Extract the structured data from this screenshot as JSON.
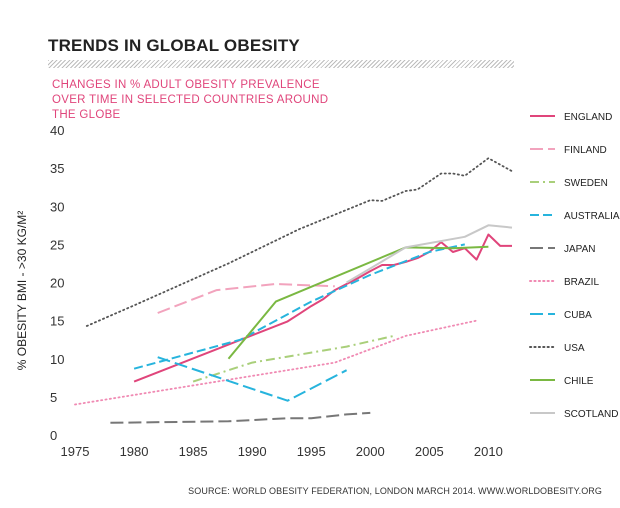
{
  "header": {
    "title": "TRENDS IN GLOBAL OBESITY",
    "subtitle": "CHANGES IN % ADULT OBESITY PREVALENCE OVER TIME IN SELECTED COUNTRIES AROUND THE GLOBE"
  },
  "source": "SOURCE: WORLD OBESITY FEDERATION, LONDON MARCH 2014.  WWW.WORLDOBESITY.ORG",
  "chart_data": {
    "type": "line",
    "title": "TRENDS IN GLOBAL OBESITY",
    "subtitle": "CHANGES IN % ADULT OBESITY PREVALENCE OVER TIME IN SELECTED COUNTRIES AROUND THE GLOBE",
    "xlabel": "",
    "ylabel": "% OBESITY BMI  - >30 KG/M²",
    "xlim": [
      1975,
      2012
    ],
    "ylim": [
      0,
      40
    ],
    "xticks": [
      1975,
      1980,
      1985,
      1990,
      1995,
      2000,
      2005,
      2010
    ],
    "yticks": [
      0,
      5,
      10,
      15,
      20,
      25,
      30,
      35,
      40
    ],
    "grid": false,
    "legend_position": "right",
    "series": [
      {
        "name": "ENGLAND",
        "color": "#e0457b",
        "dash": "solid",
        "points": [
          [
            1980,
            7.0
          ],
          [
            1993,
            14.9
          ],
          [
            1994,
            15.9
          ],
          [
            1995,
            16.9
          ],
          [
            1996,
            17.8
          ],
          [
            1997,
            19.0
          ],
          [
            1998,
            19.8
          ],
          [
            1999,
            20.6
          ],
          [
            2000,
            21.5
          ],
          [
            2001,
            22.3
          ],
          [
            2002,
            22.3
          ],
          [
            2003,
            22.7
          ],
          [
            2004,
            23.2
          ],
          [
            2005,
            24.0
          ],
          [
            2006,
            25.3
          ],
          [
            2007,
            24.0
          ],
          [
            2008,
            24.5
          ],
          [
            2009,
            23.0
          ],
          [
            2010,
            26.3
          ],
          [
            2011,
            24.8
          ],
          [
            2012,
            24.8
          ]
        ]
      },
      {
        "name": "FINLAND",
        "color": "#f2a3bd",
        "dash": "longdash",
        "points": [
          [
            1982,
            16.0
          ],
          [
            1987,
            19.0
          ],
          [
            1992,
            19.8
          ],
          [
            1997,
            19.5
          ]
        ]
      },
      {
        "name": "SWEDEN",
        "color": "#a9cf7a",
        "dash": "dashdot",
        "points": [
          [
            1985,
            7.0
          ],
          [
            1988,
            8.5
          ],
          [
            1990,
            9.5
          ],
          [
            1995,
            10.8
          ],
          [
            1998,
            11.6
          ],
          [
            2002,
            13.0
          ]
        ]
      },
      {
        "name": "AUSTRALIA",
        "color": "#27b4dd",
        "dash": "dashed",
        "points": [
          [
            1980,
            8.7
          ],
          [
            1989,
            12.5
          ],
          [
            1995,
            17.5
          ],
          [
            2000,
            21.0
          ],
          [
            2005,
            24.0
          ],
          [
            2008,
            25.0
          ]
        ]
      },
      {
        "name": "JAPAN",
        "color": "#777777",
        "dash": "longdash",
        "points": [
          [
            1978,
            1.6
          ],
          [
            1988,
            1.8
          ],
          [
            1993,
            2.2
          ],
          [
            1995,
            2.2
          ],
          [
            1998,
            2.7
          ],
          [
            2000,
            2.9
          ]
        ]
      },
      {
        "name": "BRAZIL",
        "color": "#f08ab3",
        "dash": "dotted",
        "points": [
          [
            1975,
            4.0
          ],
          [
            1989,
            7.5
          ],
          [
            1997,
            9.5
          ],
          [
            2003,
            13.0
          ],
          [
            2009,
            15.0
          ]
        ]
      },
      {
        "name": "CUBA",
        "color": "#27b4dd",
        "dash": "longdash",
        "points": [
          [
            1982,
            10.2
          ],
          [
            1993,
            4.5
          ],
          [
            1998,
            8.5
          ]
        ]
      },
      {
        "name": "USA",
        "color": "#555555",
        "dash": "dotted",
        "points": [
          [
            1976,
            14.3
          ],
          [
            1980,
            17.0
          ],
          [
            1988,
            22.5
          ],
          [
            1994,
            27.0
          ],
          [
            2000,
            30.8
          ],
          [
            2001,
            30.7
          ],
          [
            2003,
            32.0
          ],
          [
            2004,
            32.2
          ],
          [
            2006,
            34.3
          ],
          [
            2007,
            34.3
          ],
          [
            2008,
            34.0
          ],
          [
            2010,
            36.3
          ],
          [
            2012,
            34.6
          ]
        ]
      },
      {
        "name": "CHILE",
        "color": "#7ab842",
        "dash": "solid",
        "points": [
          [
            1988,
            10.0
          ],
          [
            1992,
            17.5
          ],
          [
            2003,
            24.6
          ],
          [
            2007,
            24.5
          ],
          [
            2010,
            24.7
          ]
        ]
      },
      {
        "name": "SCOTLAND",
        "color": "#c8c8c8",
        "dash": "solid",
        "points": [
          [
            1998,
            20.0
          ],
          [
            2003,
            24.6
          ],
          [
            2008,
            26.0
          ],
          [
            2010,
            27.5
          ],
          [
            2012,
            27.2
          ]
        ]
      }
    ]
  }
}
